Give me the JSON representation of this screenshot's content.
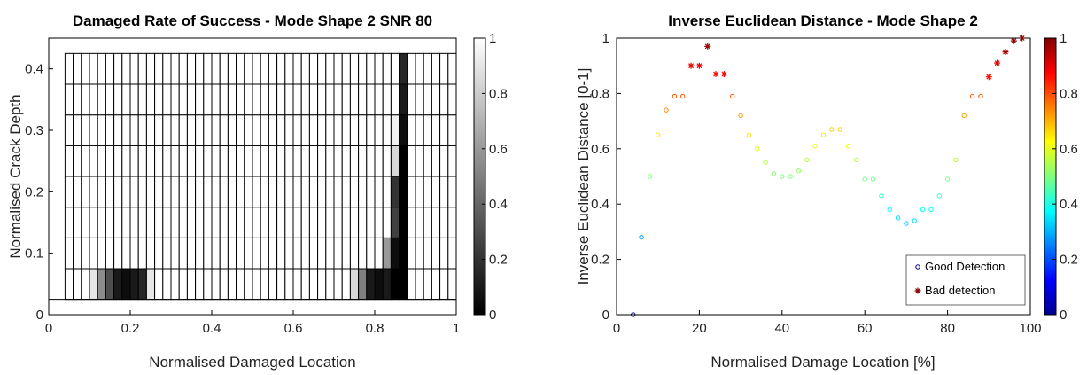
{
  "chart_data": [
    {
      "type": "heatmap",
      "title": "Damaged Rate of Success - Mode Shape 2 SNR 80",
      "xlabel": "Normalised Damaged Location",
      "ylabel": "Normalised Crack Depth",
      "xlim": [
        0,
        1
      ],
      "ylim": [
        0,
        0.45
      ],
      "xticks": [
        "0",
        "0.2",
        "0.4",
        "0.6",
        "0.8",
        "1"
      ],
      "yticks": [
        "0",
        "0.1",
        "0.2",
        "0.3",
        "0.4"
      ],
      "colormap": "gray",
      "colorbar": {
        "min": 0,
        "max": 1,
        "ticks": [
          "0",
          "0.2",
          "0.4",
          "0.6",
          "0.8",
          "1"
        ]
      },
      "x_start": 0.04,
      "x_step": 0.02,
      "y_rows": [
        0.05,
        0.1,
        0.15,
        0.2,
        0.25,
        0.3,
        0.35,
        0.4
      ],
      "default_value": 1,
      "cells": [
        {
          "row": 0,
          "col": 3,
          "value": 0.9
        },
        {
          "row": 0,
          "col": 4,
          "value": 0.55
        },
        {
          "row": 0,
          "col": 5,
          "value": 0.3
        },
        {
          "row": 0,
          "col": 6,
          "value": 0.1
        },
        {
          "row": 0,
          "col": 7,
          "value": 0.05
        },
        {
          "row": 0,
          "col": 8,
          "value": 0.1
        },
        {
          "row": 0,
          "col": 9,
          "value": 0.15
        },
        {
          "row": 0,
          "col": 10,
          "value": 0.9
        },
        {
          "row": 0,
          "col": 35,
          "value": 0.85
        },
        {
          "row": 0,
          "col": 36,
          "value": 0.5
        },
        {
          "row": 0,
          "col": 37,
          "value": 0.1
        },
        {
          "row": 0,
          "col": 38,
          "value": 0.05
        },
        {
          "row": 0,
          "col": 39,
          "value": 0.1
        },
        {
          "row": 0,
          "col": 40,
          "value": 0.0
        },
        {
          "row": 0,
          "col": 41,
          "value": 0.0
        },
        {
          "row": 1,
          "col": 39,
          "value": 0.6
        },
        {
          "row": 1,
          "col": 40,
          "value": 0.05
        },
        {
          "row": 1,
          "col": 41,
          "value": 0.0
        },
        {
          "row": 2,
          "col": 40,
          "value": 0.25
        },
        {
          "row": 2,
          "col": 41,
          "value": 0.0
        },
        {
          "row": 3,
          "col": 40,
          "value": 0.2
        },
        {
          "row": 3,
          "col": 41,
          "value": 0.0
        },
        {
          "row": 4,
          "col": 40,
          "value": 0.85
        },
        {
          "row": 4,
          "col": 41,
          "value": 0.0
        },
        {
          "row": 5,
          "col": 40,
          "value": 0.95
        },
        {
          "row": 5,
          "col": 41,
          "value": 0.05
        },
        {
          "row": 6,
          "col": 41,
          "value": 0.1
        },
        {
          "row": 7,
          "col": 41,
          "value": 0.15
        }
      ]
    },
    {
      "type": "scatter",
      "title": "Inverse Euclidean Distance - Mode Shape 2",
      "xlabel": "Normalised Damage Location [%]",
      "ylabel": "Inverse Euclidean Distance [0-1]",
      "xlim": [
        0,
        100
      ],
      "ylim": [
        0,
        1
      ],
      "xticks": [
        "0",
        "20",
        "40",
        "60",
        "80",
        "100"
      ],
      "yticks": [
        "0",
        "0.2",
        "0.4",
        "0.6",
        "0.8",
        "1"
      ],
      "colormap": "jet",
      "colorbar": {
        "min": 0,
        "max": 1,
        "ticks": [
          "0",
          "0.2",
          "0.4",
          "0.6",
          "0.8",
          "1"
        ]
      },
      "legend": {
        "position": "bottom-right",
        "entries": [
          "Good Detection",
          "Bad detection"
        ]
      },
      "series": [
        {
          "name": "Good Detection",
          "marker": "circle",
          "x": [
            4,
            6,
            8,
            10,
            12,
            14,
            16,
            28,
            30,
            32,
            34,
            36,
            38,
            40,
            42,
            44,
            46,
            48,
            50,
            52,
            54,
            56,
            58,
            60,
            62,
            64,
            66,
            68,
            70,
            72,
            74,
            76,
            78,
            80,
            82,
            84,
            86,
            88
          ],
          "y": [
            0.0,
            0.28,
            0.5,
            0.65,
            0.74,
            0.79,
            0.79,
            0.79,
            0.72,
            0.65,
            0.6,
            0.55,
            0.51,
            0.5,
            0.5,
            0.52,
            0.56,
            0.61,
            0.65,
            0.67,
            0.67,
            0.61,
            0.56,
            0.49,
            0.49,
            0.43,
            0.38,
            0.35,
            0.33,
            0.34,
            0.38,
            0.38,
            0.43,
            0.49,
            0.56,
            0.72,
            0.79,
            0.79
          ]
        },
        {
          "name": "Bad detection",
          "marker": "asterisk",
          "x": [
            18,
            20,
            22,
            24,
            26,
            90,
            92,
            94,
            96,
            98
          ],
          "y": [
            0.9,
            0.9,
            0.97,
            0.87,
            0.87,
            0.86,
            0.91,
            0.95,
            0.99,
            1.0
          ]
        }
      ]
    }
  ]
}
